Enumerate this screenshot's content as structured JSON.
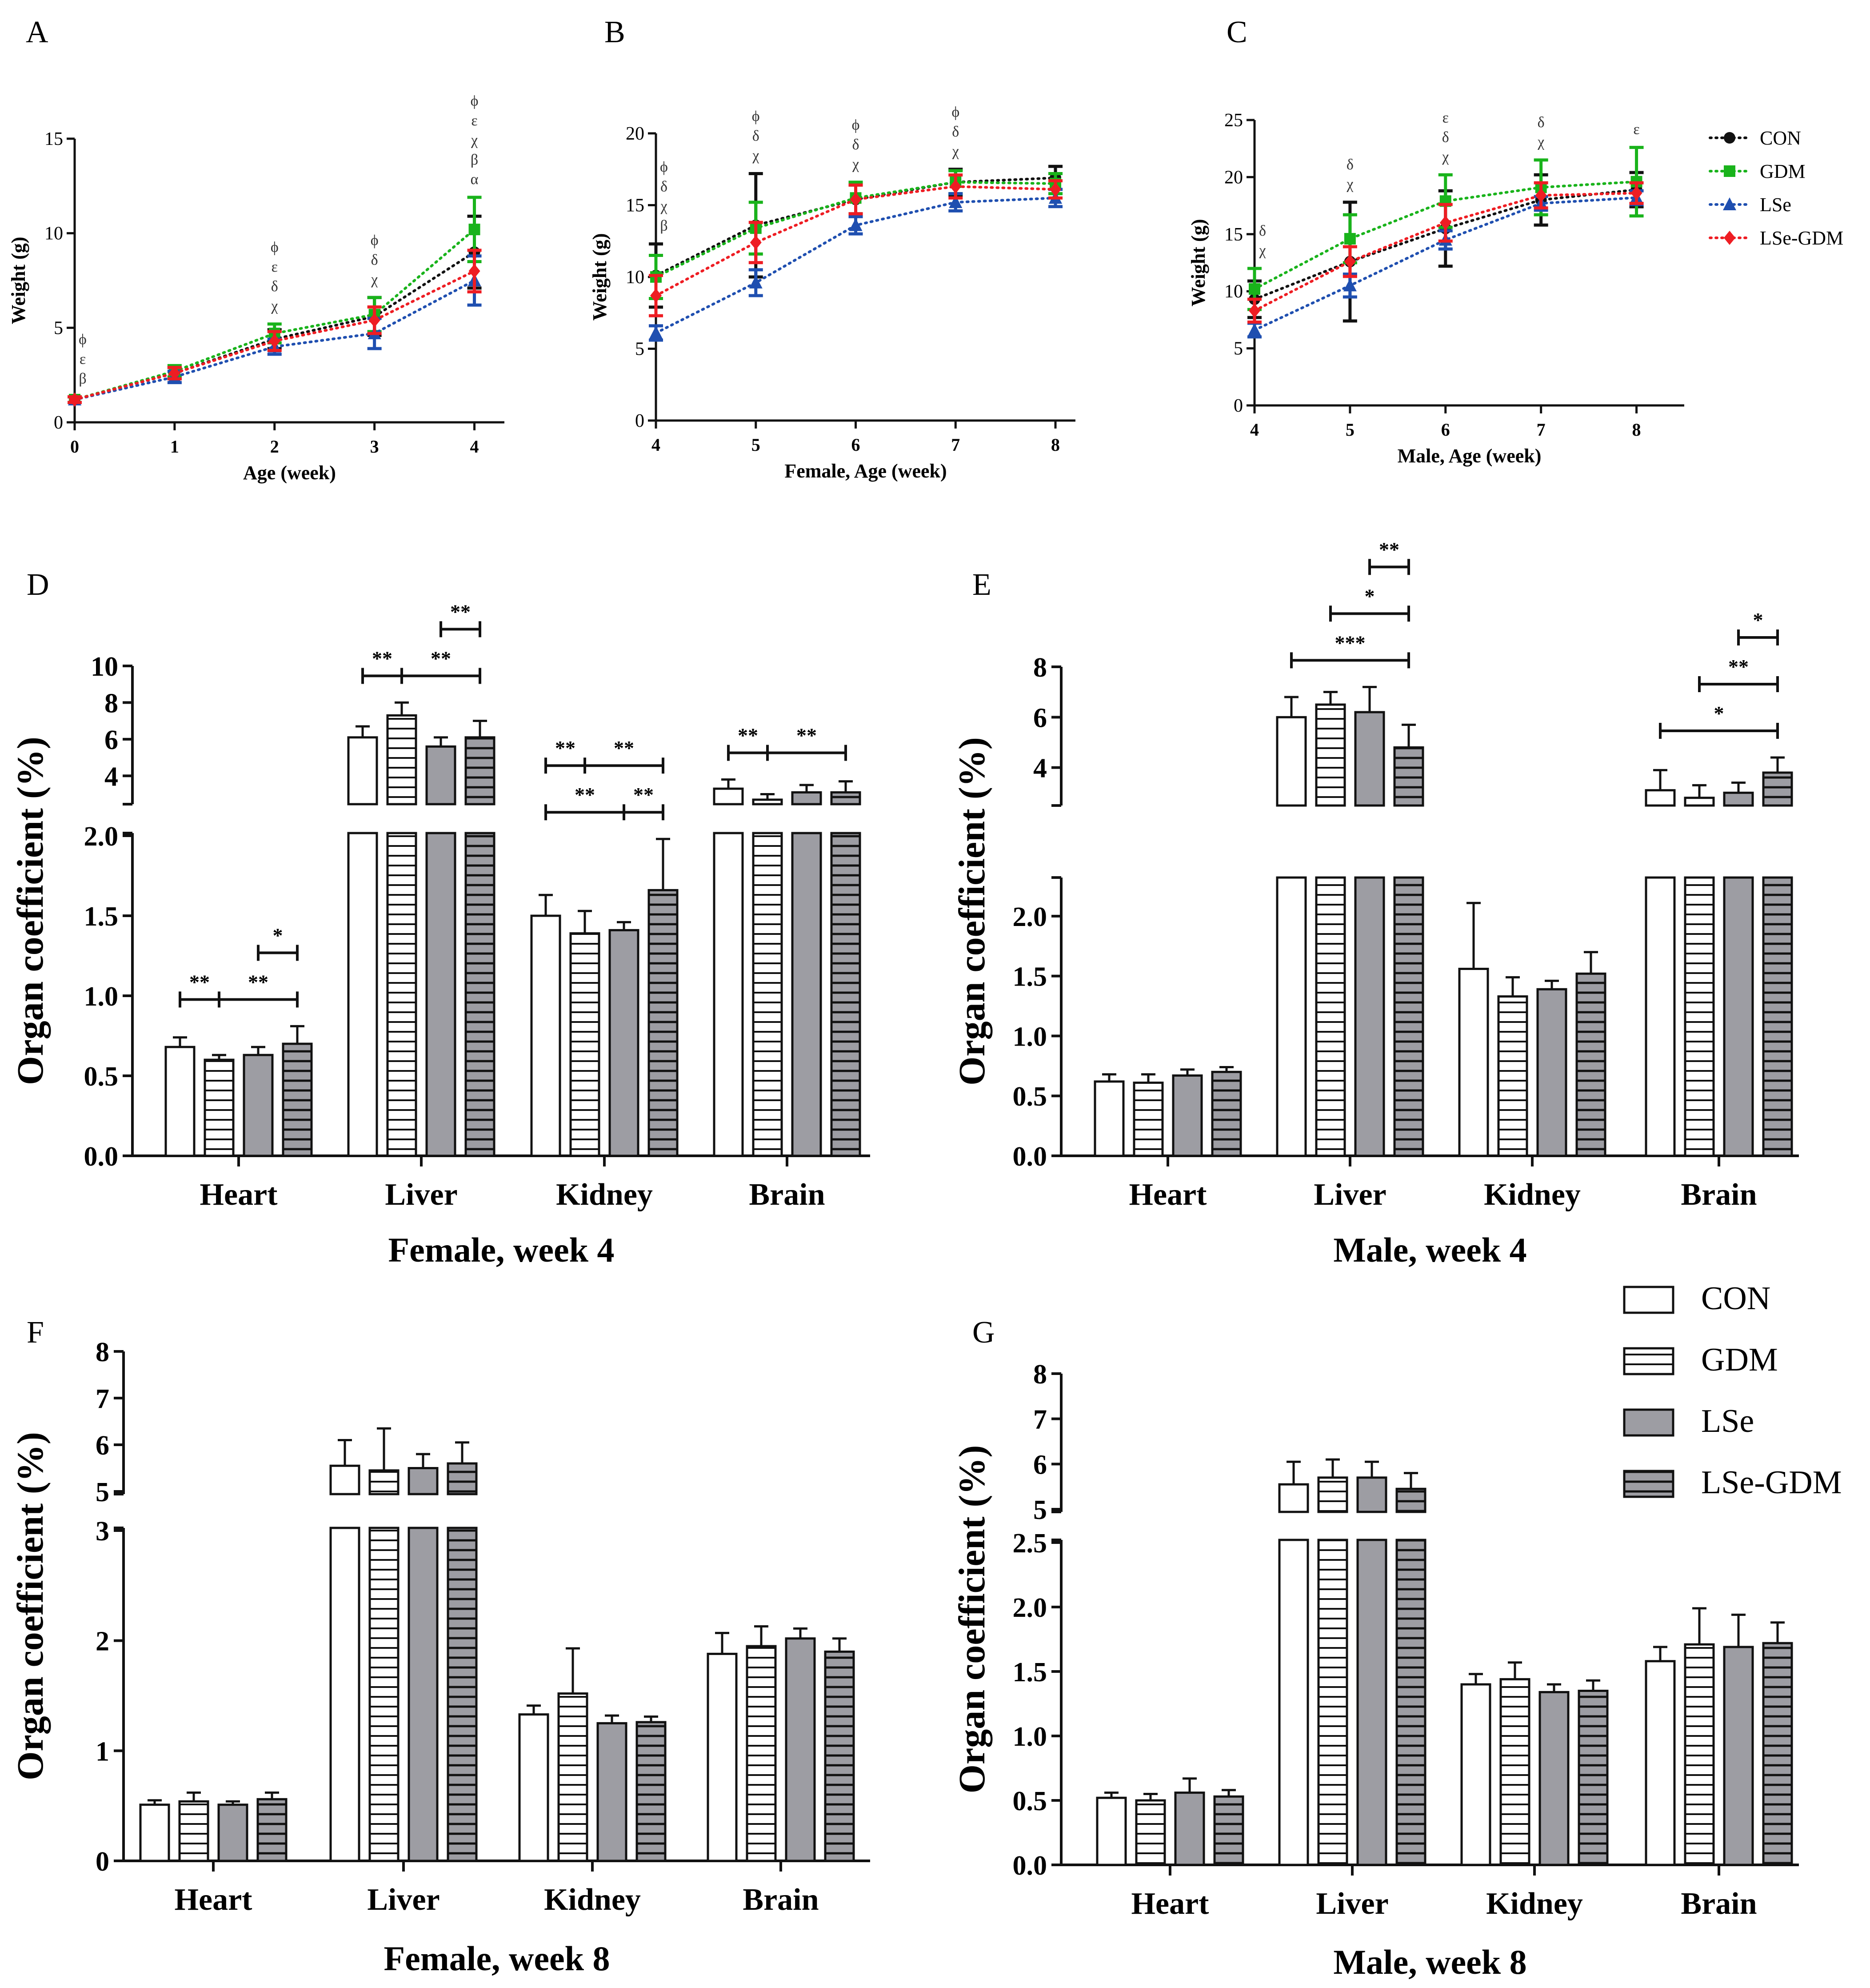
{
  "chart_data": [
    {
      "panel": "A",
      "type": "line",
      "sex": "",
      "xlabel": "Age (week)",
      "ylabel": "Weight (g)",
      "x": [
        0,
        1,
        2,
        3,
        4
      ],
      "xlim": [
        0,
        4.3
      ],
      "ylim": [
        0,
        15
      ],
      "yticks": [
        0,
        5,
        10,
        15
      ],
      "series": [
        {
          "name": "CON",
          "values": [
            1.2,
            2.6,
            4.4,
            5.6,
            9.0
          ],
          "err": [
            0.15,
            0.3,
            0.5,
            1.0,
            1.9
          ]
        },
        {
          "name": "GDM",
          "values": [
            1.2,
            2.7,
            4.7,
            5.7,
            10.2
          ],
          "err": [
            0.15,
            0.3,
            0.5,
            0.9,
            1.7
          ]
        },
        {
          "name": "LSe",
          "values": [
            1.2,
            2.4,
            4.0,
            4.7,
            7.5
          ],
          "err": [
            0.15,
            0.3,
            0.4,
            0.8,
            1.3
          ]
        },
        {
          "name": "LSe-GDM",
          "values": [
            1.2,
            2.6,
            4.3,
            5.4,
            8.0
          ],
          "err": [
            0.15,
            0.3,
            0.5,
            0.7,
            1.1
          ]
        }
      ],
      "annotations": [
        {
          "x": 0,
          "lines": [
            "ϕ",
            "ε",
            "β"
          ]
        },
        {
          "x": 2,
          "lines": [
            "ϕ",
            "ε",
            "δ",
            "χ"
          ]
        },
        {
          "x": 3,
          "lines": [
            "ϕ",
            "δ",
            "χ"
          ]
        },
        {
          "x": 4,
          "lines": [
            "ϕ",
            "ε",
            "χ",
            "β",
            "α"
          ]
        }
      ]
    },
    {
      "panel": "B",
      "type": "line",
      "sex": "Female",
      "xlabel": "Female, Age (week)",
      "ylabel": "Weight (g)",
      "x": [
        4,
        5,
        6,
        7,
        8
      ],
      "xlim": [
        4,
        8.2
      ],
      "ylim": [
        0,
        20
      ],
      "yticks": [
        0,
        5,
        10,
        15,
        20
      ],
      "series": [
        {
          "name": "CON",
          "values": [
            10.1,
            13.6,
            15.4,
            16.6,
            16.9
          ],
          "err": [
            2.2,
            3.6,
            1.0,
            0.9,
            0.8
          ]
        },
        {
          "name": "GDM",
          "values": [
            10.0,
            13.4,
            15.5,
            16.6,
            16.5
          ],
          "err": [
            1.5,
            1.8,
            1.1,
            0.8,
            0.7
          ]
        },
        {
          "name": "LSe",
          "values": [
            6.1,
            9.6,
            13.6,
            15.2,
            15.5
          ],
          "err": [
            0.5,
            0.9,
            0.6,
            0.6,
            0.6
          ]
        },
        {
          "name": "LSe-GDM",
          "values": [
            8.7,
            12.4,
            15.4,
            16.3,
            16.1
          ],
          "err": [
            1.4,
            1.4,
            1.0,
            0.8,
            0.6
          ]
        }
      ],
      "annotations": [
        {
          "x": 4,
          "lines": [
            "ϕ",
            "δ",
            "χ",
            "β"
          ]
        },
        {
          "x": 5,
          "lines": [
            "ϕ",
            "δ",
            "χ"
          ]
        },
        {
          "x": 6,
          "lines": [
            "ϕ",
            "δ",
            "χ"
          ]
        },
        {
          "x": 7,
          "lines": [
            "ϕ",
            "δ",
            "χ"
          ]
        }
      ]
    },
    {
      "panel": "C",
      "type": "line",
      "sex": "Male",
      "xlabel": "Male, Age (week)",
      "ylabel": "Weight (g)",
      "x": [
        4,
        5,
        6,
        7,
        8
      ],
      "xlim": [
        4,
        8.5
      ],
      "ylim": [
        0,
        25
      ],
      "yticks": [
        0,
        5,
        10,
        15,
        20,
        25
      ],
      "series": [
        {
          "name": "CON",
          "values": [
            9.3,
            12.6,
            15.5,
            18.0,
            18.9
          ],
          "err": [
            1.6,
            5.2,
            3.3,
            2.2,
            1.5
          ]
        },
        {
          "name": "GDM",
          "values": [
            10.2,
            14.6,
            17.9,
            19.1,
            19.6
          ],
          "err": [
            1.8,
            2.1,
            2.3,
            2.4,
            3.0
          ]
        },
        {
          "name": "LSe",
          "values": [
            6.6,
            10.5,
            14.5,
            17.7,
            18.2
          ],
          "err": [
            0.6,
            1.0,
            0.8,
            0.6,
            0.6
          ]
        },
        {
          "name": "LSe-GDM",
          "values": [
            8.3,
            12.6,
            16.0,
            18.4,
            18.6
          ],
          "err": [
            1.0,
            1.3,
            1.6,
            1.1,
            0.9
          ]
        }
      ],
      "annotations": [
        {
          "x": 4,
          "lines": [
            "δ",
            "χ"
          ]
        },
        {
          "x": 5,
          "lines": [
            "δ",
            "χ"
          ]
        },
        {
          "x": 6,
          "lines": [
            "ε",
            "δ",
            "χ"
          ]
        },
        {
          "x": 7,
          "lines": [
            "δ",
            "χ"
          ]
        },
        {
          "x": 8,
          "lines": [
            "ε"
          ]
        }
      ]
    },
    {
      "panel": "D",
      "type": "bar",
      "title": "Female, week 4",
      "ylabel": "Organ coefficient (%)",
      "categories": [
        "Heart",
        "Liver",
        "Kidney",
        "Brain"
      ],
      "series": [
        {
          "name": "CON",
          "values": [
            0.68,
            6.1,
            1.5,
            3.3
          ],
          "err": [
            0.06,
            0.6,
            0.13,
            0.5
          ]
        },
        {
          "name": "GDM",
          "values": [
            0.6,
            7.3,
            1.39,
            2.7
          ],
          "err": [
            0.03,
            0.7,
            0.14,
            0.3
          ]
        },
        {
          "name": "LSe",
          "values": [
            0.63,
            5.6,
            1.41,
            3.1
          ],
          "err": [
            0.05,
            0.5,
            0.05,
            0.4
          ]
        },
        {
          "name": "LSe-GDM",
          "values": [
            0.7,
            6.1,
            1.66,
            3.1
          ],
          "err": [
            0.11,
            0.9,
            0.32,
            0.6
          ]
        }
      ],
      "lower_axis": {
        "range": [
          0,
          2.0
        ],
        "ticks": [
          "0.0",
          "0.5",
          "1.0",
          "1.5",
          "2.0"
        ]
      },
      "upper_axis": {
        "range": [
          2.6,
          10
        ],
        "ticks": [
          "4",
          "6",
          "8",
          "10"
        ]
      },
      "significance": [
        {
          "organ": "Heart",
          "from": "CON",
          "mid": "GDM",
          "to": "LSe-GDM",
          "labels": [
            "**",
            "**"
          ]
        },
        {
          "organ": "Heart",
          "from": "LSe",
          "to": "LSe-GDM",
          "label": "*"
        },
        {
          "organ": "Liver",
          "from": "CON",
          "mid": "GDM",
          "to": "LSe-GDM",
          "labels": [
            "**",
            "**"
          ]
        },
        {
          "organ": "Liver",
          "from": "LSe",
          "to": "LSe-GDM",
          "label": "**"
        },
        {
          "organ": "Kidney",
          "from": "CON",
          "mid": "LSe",
          "to": "LSe-GDM",
          "labels": [
            "**",
            "**"
          ]
        },
        {
          "organ": "Kidney",
          "from": "CON",
          "mid": "GDM",
          "to": "LSe-GDM",
          "labels": [
            "**",
            "**"
          ]
        },
        {
          "organ": "Brain",
          "from": "CON",
          "mid": "GDM",
          "to": "LSe-GDM",
          "labels": [
            "**",
            "**"
          ]
        }
      ]
    },
    {
      "panel": "E",
      "type": "bar",
      "title": "Male, week 4",
      "ylabel": "Organ coefficient (%)",
      "categories": [
        "Heart",
        "Liver",
        "Kidney",
        "Brain"
      ],
      "series": [
        {
          "name": "CON",
          "values": [
            0.62,
            6.0,
            1.56,
            3.1
          ],
          "err": [
            0.06,
            0.8,
            0.55,
            0.8
          ]
        },
        {
          "name": "GDM",
          "values": [
            0.61,
            6.5,
            1.33,
            2.8
          ],
          "err": [
            0.07,
            0.5,
            0.16,
            0.5
          ]
        },
        {
          "name": "LSe",
          "values": [
            0.67,
            6.2,
            1.39,
            3.0
          ],
          "err": [
            0.05,
            1.0,
            0.07,
            0.4
          ]
        },
        {
          "name": "LSe-GDM",
          "values": [
            0.7,
            4.8,
            1.52,
            3.8
          ],
          "err": [
            0.04,
            0.9,
            0.18,
            0.6
          ]
        }
      ],
      "lower_axis": {
        "range": [
          0,
          2.3
        ],
        "ticks": [
          "0.0",
          "0.5",
          "1.0",
          "1.5",
          "2.0"
        ]
      },
      "upper_axis": {
        "range": [
          2.6,
          8
        ],
        "ticks": [
          "4",
          "6",
          "8"
        ]
      },
      "significance": [
        {
          "organ": "Liver",
          "from": "CON",
          "to": "LSe-GDM",
          "label": "***"
        },
        {
          "organ": "Liver",
          "from": "GDM",
          "to": "LSe-GDM",
          "label": "*"
        },
        {
          "organ": "Liver",
          "from": "LSe",
          "to": "LSe-GDM",
          "label": "**"
        },
        {
          "organ": "Brain",
          "from": "CON",
          "to": "LSe-GDM",
          "label": "*"
        },
        {
          "organ": "Brain",
          "from": "GDM",
          "to": "LSe-GDM",
          "label": "**"
        },
        {
          "organ": "Brain",
          "from": "LSe",
          "to": "LSe-GDM",
          "label": "*"
        }
      ]
    },
    {
      "panel": "F",
      "type": "bar",
      "title": "Female, week 8",
      "ylabel": "Organ coefficient (%)",
      "categories": [
        "Heart",
        "Liver",
        "Kidney",
        "Brain"
      ],
      "series": [
        {
          "name": "CON",
          "values": [
            0.51,
            5.55,
            1.33,
            1.88
          ],
          "err": [
            0.04,
            0.55,
            0.08,
            0.19
          ]
        },
        {
          "name": "GDM",
          "values": [
            0.54,
            5.45,
            1.52,
            1.95
          ],
          "err": [
            0.08,
            0.9,
            0.41,
            0.18
          ]
        },
        {
          "name": "LSe",
          "values": [
            0.51,
            5.5,
            1.25,
            2.02
          ],
          "err": [
            0.03,
            0.3,
            0.07,
            0.09
          ]
        },
        {
          "name": "LSe-GDM",
          "values": [
            0.56,
            5.6,
            1.26,
            1.9
          ],
          "err": [
            0.06,
            0.45,
            0.05,
            0.12
          ]
        }
      ],
      "lower_axis": {
        "range": [
          0,
          3
        ],
        "ticks": [
          "0",
          "1",
          "2",
          "3"
        ]
      },
      "upper_axis": {
        "range": [
          5,
          8
        ],
        "ticks": [
          "5",
          "6",
          "7",
          "8"
        ]
      },
      "significance": []
    },
    {
      "panel": "G",
      "type": "bar",
      "title": "Male, week 8",
      "ylabel": "Organ coefficient (%)",
      "categories": [
        "Heart",
        "Liver",
        "Kidney",
        "Brain"
      ],
      "series": [
        {
          "name": "CON",
          "values": [
            0.52,
            5.55,
            1.4,
            1.58
          ],
          "err": [
            0.04,
            0.5,
            0.08,
            0.11
          ]
        },
        {
          "name": "GDM",
          "values": [
            0.5,
            5.7,
            1.44,
            1.71
          ],
          "err": [
            0.05,
            0.4,
            0.13,
            0.28
          ]
        },
        {
          "name": "LSe",
          "values": [
            0.56,
            5.7,
            1.34,
            1.69
          ],
          "err": [
            0.11,
            0.35,
            0.06,
            0.25
          ]
        },
        {
          "name": "LSe-GDM",
          "values": [
            0.53,
            5.45,
            1.35,
            1.72
          ],
          "err": [
            0.05,
            0.35,
            0.08,
            0.16
          ]
        }
      ],
      "lower_axis": {
        "range": [
          0,
          2.5
        ],
        "ticks": [
          "0.0",
          "0.5",
          "1.0",
          "1.5",
          "2.0",
          "2.5"
        ]
      },
      "upper_axis": {
        "range": [
          5,
          8
        ],
        "ticks": [
          "5",
          "6",
          "7",
          "8"
        ]
      },
      "significance": []
    }
  ],
  "line_legend": [
    {
      "name": "CON",
      "color": "#111111",
      "marker": "circle"
    },
    {
      "name": "GDM",
      "color": "#19b31b",
      "marker": "square"
    },
    {
      "name": "LSe",
      "color": "#1f4fb0",
      "marker": "triangle"
    },
    {
      "name": "LSe-GDM",
      "color": "#ee1d23",
      "marker": "diamond"
    }
  ],
  "bar_legend": [
    {
      "name": "CON",
      "fill": "white"
    },
    {
      "name": "GDM",
      "fill": "horizontal-stripes"
    },
    {
      "name": "LSe",
      "fill": "gray"
    },
    {
      "name": "LSe-GDM",
      "fill": "gray-stripes"
    }
  ]
}
